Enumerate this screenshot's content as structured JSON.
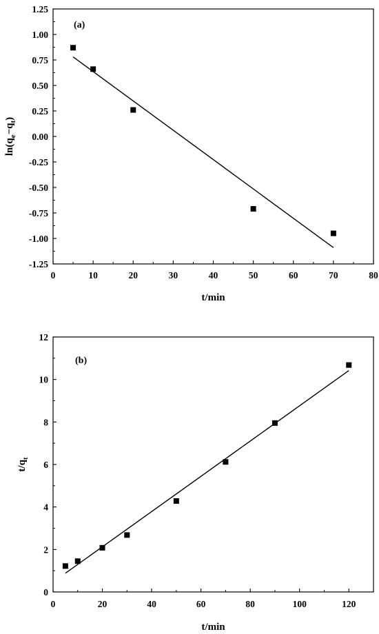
{
  "chart_data": [
    {
      "type": "scatter",
      "panel_label": "(a)",
      "xlabel": "t/min",
      "ylabel_main": "ln(q",
      "ylabel_sub1": "e",
      "ylabel_mid": "−q",
      "ylabel_sub2": "t",
      "ylabel_end": ")",
      "xlim": [
        0,
        80
      ],
      "ylim": [
        -1.25,
        1.25
      ],
      "xticks": [
        0,
        10,
        20,
        30,
        40,
        50,
        60,
        70,
        80
      ],
      "yticks": [
        -1.25,
        -1.0,
        -0.75,
        -0.5,
        -0.25,
        0.0,
        0.25,
        0.5,
        0.75,
        1.0,
        1.25
      ],
      "ytick_labels": [
        "-1.25",
        "-1.00",
        "-0.75",
        "-0.50",
        "-0.25",
        "0.00",
        "0.25",
        "0.50",
        "0.75",
        "1.00",
        "1.25"
      ],
      "points": [
        {
          "x": 5,
          "y": 0.87
        },
        {
          "x": 10,
          "y": 0.66
        },
        {
          "x": 20,
          "y": 0.26
        },
        {
          "x": 50,
          "y": -0.71
        },
        {
          "x": 70,
          "y": -0.95
        }
      ],
      "fit_line": {
        "x": [
          5,
          70
        ],
        "y": [
          0.78,
          -1.09
        ]
      },
      "grid": false,
      "color": "#000000"
    },
    {
      "type": "scatter",
      "panel_label": "(b)",
      "xlabel": "t/min",
      "ylabel_main": "t/q",
      "ylabel_sub": "t",
      "xlim": [
        0,
        130
      ],
      "ylim": [
        0,
        12
      ],
      "xticks": [
        0,
        20,
        40,
        60,
        80,
        100,
        120
      ],
      "yticks": [
        0,
        2,
        4,
        6,
        8,
        10,
        12
      ],
      "ytick_labels": [
        "0",
        "2",
        "4",
        "6",
        "8",
        "10",
        "12"
      ],
      "points": [
        {
          "x": 5,
          "y": 1.22
        },
        {
          "x": 10,
          "y": 1.45
        },
        {
          "x": 20,
          "y": 2.08
        },
        {
          "x": 30,
          "y": 2.68
        },
        {
          "x": 50,
          "y": 4.28
        },
        {
          "x": 70,
          "y": 6.12
        },
        {
          "x": 90,
          "y": 7.95
        },
        {
          "x": 120,
          "y": 10.68
        }
      ],
      "fit_line": {
        "x": [
          5,
          120
        ],
        "y": [
          0.88,
          10.42
        ]
      },
      "grid": false,
      "color": "#000000"
    }
  ]
}
